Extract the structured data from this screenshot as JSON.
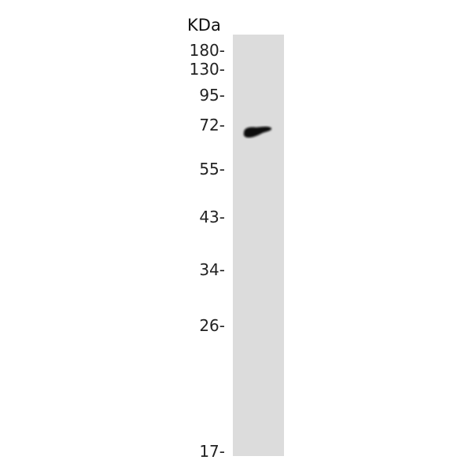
{
  "unit_label": "KDa",
  "markers": [
    {
      "label": "180-",
      "kda": 180
    },
    {
      "label": "130-",
      "kda": 130
    },
    {
      "label": "95-",
      "kda": 95
    },
    {
      "label": "72-",
      "kda": 72
    },
    {
      "label": "55-",
      "kda": 55
    },
    {
      "label": "43-",
      "kda": 43
    },
    {
      "label": "34-",
      "kda": 34
    },
    {
      "label": "26-",
      "kda": 26
    },
    {
      "label": "17-",
      "kda": 17
    }
  ],
  "lanes": [
    {
      "bands": [
        {
          "approx_kda": 68
        }
      ]
    }
  ],
  "colors": {
    "lane": "#dcdcdc",
    "band": "#0a0a0a"
  }
}
